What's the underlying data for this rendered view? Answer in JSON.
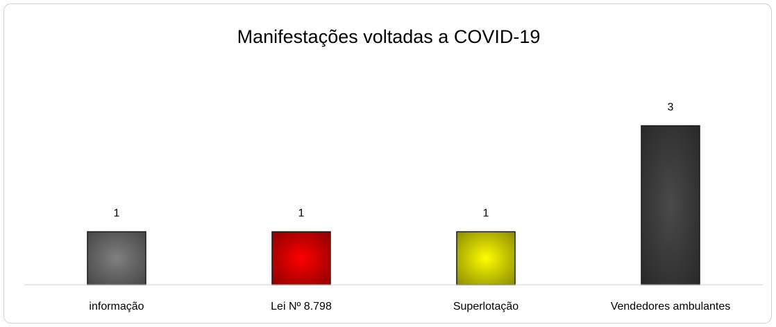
{
  "chart_data": {
    "type": "bar",
    "title": "Manifestações voltadas a COVID-19",
    "categories": [
      "informação",
      "Lei Nº 8.798",
      "Superlotação",
      "Vendedores ambulantes"
    ],
    "values": [
      1,
      1,
      1,
      3
    ],
    "colors": [
      "#808080",
      "#ff0000",
      "#ffff00",
      "#4a4a4a"
    ],
    "ylim": [
      0,
      4
    ]
  }
}
